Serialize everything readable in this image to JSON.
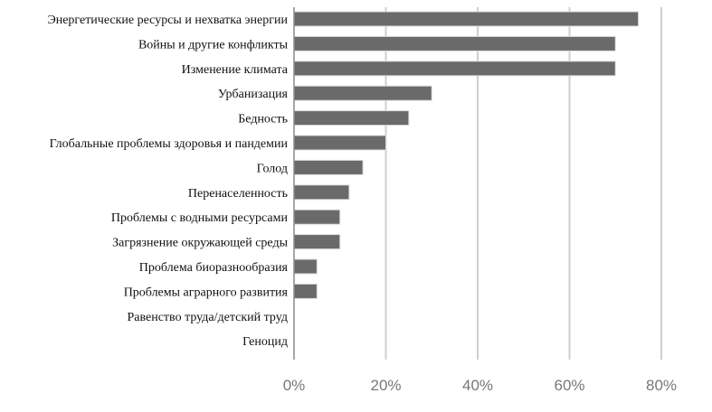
{
  "chart_data": {
    "type": "bar",
    "orientation": "horizontal",
    "title": "",
    "xlabel": "",
    "ylabel": "",
    "bar_color": "#6a6a6a",
    "grid": true,
    "xlim": [
      0,
      80
    ],
    "x_ticks": [
      {
        "value": 0,
        "label": "0%"
      },
      {
        "value": 20,
        "label": "20%"
      },
      {
        "value": 40,
        "label": "40%"
      },
      {
        "value": 60,
        "label": "60%"
      },
      {
        "value": 80,
        "label": "80%"
      }
    ],
    "categories": [
      "Энергетические ресурсы и нехватка энергии",
      "Войны и другие конфликты",
      "Изменение климата",
      "Урбанизация",
      "Бедность",
      "Глобальные проблемы здоровья и пандемии",
      "Голод",
      "Перенаселенность",
      "Проблемы с водными ресурсами",
      "Загрязнение окружающей среды",
      "Проблема биоразнообразия",
      "Проблемы аграрного развития",
      "Равенство труда/детский труд",
      "Геноцид"
    ],
    "values": [
      75,
      70,
      70,
      30,
      25,
      20,
      15,
      12,
      10,
      10,
      5,
      5,
      0,
      0
    ]
  }
}
